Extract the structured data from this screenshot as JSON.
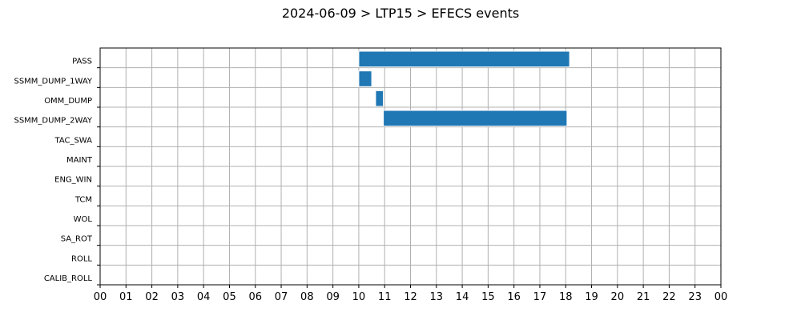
{
  "chart_data": {
    "type": "gantt",
    "title": "2024-06-09 > LTP15 > EFECS events",
    "xlabel": "",
    "ylabel": "",
    "x_unit": "hour",
    "xlim": [
      0,
      24
    ],
    "x_ticks": [
      0,
      1,
      2,
      3,
      4,
      5,
      6,
      7,
      8,
      9,
      10,
      11,
      12,
      13,
      14,
      15,
      16,
      17,
      18,
      19,
      20,
      21,
      22,
      23,
      24
    ],
    "x_tick_labels": [
      "00",
      "01",
      "02",
      "03",
      "04",
      "05",
      "06",
      "07",
      "08",
      "09",
      "10",
      "11",
      "12",
      "13",
      "14",
      "15",
      "16",
      "17",
      "18",
      "19",
      "20",
      "21",
      "22",
      "23",
      "00"
    ],
    "categories": [
      "PASS",
      "SSMM_DUMP_1WAY",
      "OMM_DUMP",
      "SSMM_DUMP_2WAY",
      "TAC_SWA",
      "MAINT",
      "ENG_WIN",
      "TCM",
      "WOL",
      "SA_ROT",
      "ROLL",
      "CALIB_ROLL"
    ],
    "events": [
      {
        "category": "PASS",
        "start": 10.0,
        "end": 18.15
      },
      {
        "category": "SSMM_DUMP_1WAY",
        "start": 10.0,
        "end": 10.5
      },
      {
        "category": "OMM_DUMP",
        "start": 10.65,
        "end": 10.95
      },
      {
        "category": "SSMM_DUMP_2WAY",
        "start": 10.95,
        "end": 18.05
      }
    ],
    "bar_color": "#1f77b4",
    "grid": true,
    "legend": "none"
  }
}
